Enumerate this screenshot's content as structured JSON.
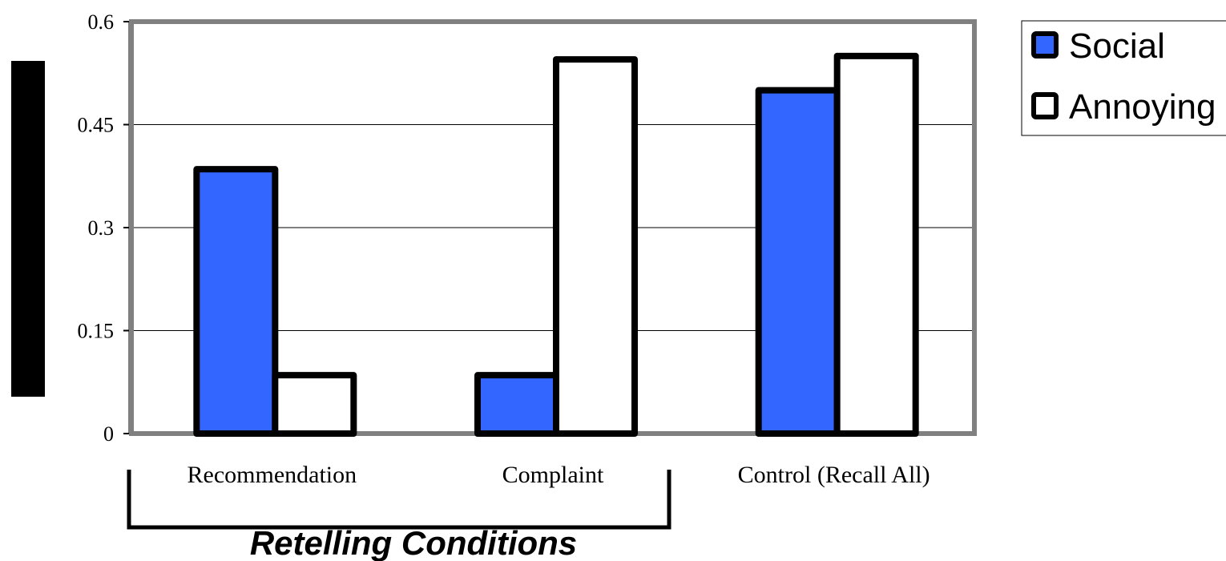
{
  "chart_data": {
    "type": "bar",
    "categories": [
      "Recommendation",
      "Complaint",
      "Control (Recall All)"
    ],
    "series": [
      {
        "name": "Social",
        "values": [
          0.385,
          0.085,
          0.5
        ],
        "color": "#3366ff"
      },
      {
        "name": "Annoying",
        "values": [
          0.085,
          0.545,
          0.55
        ],
        "color": "#ffffff"
      }
    ],
    "ylim": [
      0,
      0.6
    ],
    "yticks": [
      "0",
      "0.15",
      "0.3",
      "0.45",
      "0.6"
    ],
    "ytick_values": [
      0,
      0.15,
      0.3,
      0.45,
      0.6
    ],
    "grid": true,
    "legend_position": "top-right",
    "group_label": "Retelling Conditions",
    "plot_border_color": "#808080"
  }
}
